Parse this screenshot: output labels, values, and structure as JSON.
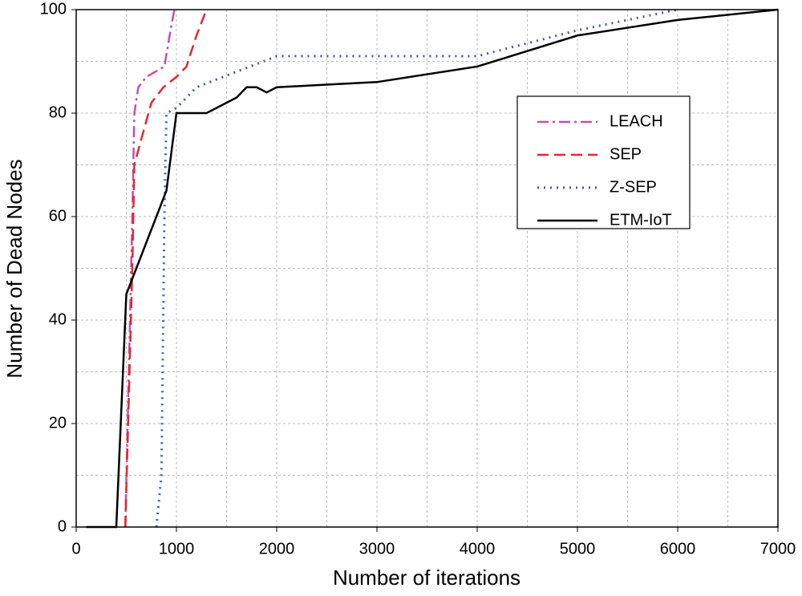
{
  "chart_data": {
    "type": "line",
    "xlabel": "Number of iterations",
    "ylabel": "Number of Dead Nodes",
    "xlim": [
      0,
      7000
    ],
    "ylim": [
      0,
      100
    ],
    "xticks": [
      0,
      1000,
      2000,
      3000,
      4000,
      5000,
      6000,
      7000
    ],
    "yticks": [
      0,
      20,
      40,
      60,
      80,
      100
    ],
    "xgrid": [
      500,
      1000,
      1500,
      2000,
      2500,
      3000,
      3500,
      4000,
      4500,
      5000,
      5500,
      6000,
      6500
    ],
    "ygrid": [
      10,
      20,
      30,
      40,
      50,
      60,
      70,
      80,
      90
    ],
    "grid": true,
    "legend": "upper right",
    "series": [
      {
        "name": "LEACH",
        "color": "#c150b0",
        "linestyle": "dashdot",
        "x": [
          490,
          560,
          580,
          620,
          700,
          880,
          950,
          980
        ],
        "values": [
          0,
          60,
          80,
          85,
          87,
          89,
          97,
          100
        ]
      },
      {
        "name": "SEP",
        "color": "#e8262c",
        "linestyle": "dashed",
        "x": [
          490,
          560,
          580,
          650,
          750,
          870,
          1000,
          1100,
          1200,
          1300
        ],
        "values": [
          0,
          50,
          70,
          75,
          82,
          85,
          87,
          89,
          95,
          100
        ]
      },
      {
        "name": "Z-SEP",
        "color": "#3a5ea8",
        "linestyle": "dotted",
        "x": [
          800,
          850,
          880,
          900,
          1000,
          1200,
          1600,
          2000,
          4000,
          5000,
          6000
        ],
        "values": [
          0,
          10,
          60,
          80,
          81,
          85,
          88,
          91,
          91,
          96,
          100
        ]
      },
      {
        "name": "ETM-IoT",
        "color": "#000000",
        "linestyle": "solid",
        "x": [
          100,
          400,
          500,
          900,
          1000,
          1300,
          1600,
          1700,
          1800,
          1900,
          2000,
          3000,
          4000,
          5000,
          6000,
          7000
        ],
        "values": [
          0,
          0,
          45,
          65,
          80,
          80,
          83,
          85,
          85,
          84,
          85,
          86,
          89,
          95,
          98,
          100
        ]
      }
    ]
  }
}
